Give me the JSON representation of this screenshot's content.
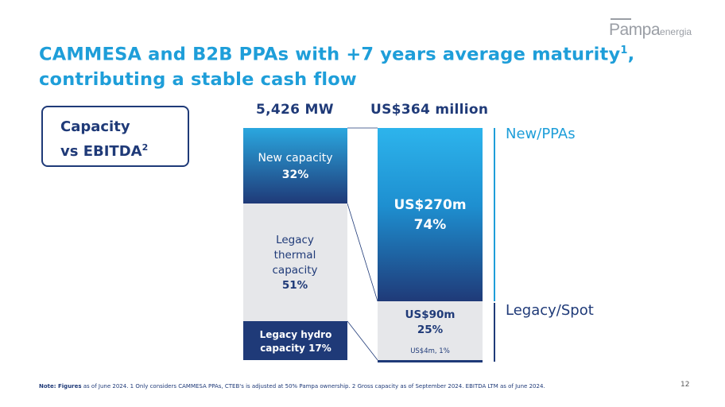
{
  "slide": {
    "title_line1": "CAMMESA and B2B PPAs with +7 years average maturity",
    "title_sup": "1",
    "title_line1_end": ",",
    "title_line2": "contributing a stable cash flow",
    "logo_main": "Pampa",
    "logo_small": "energia",
    "box_line1": "Capacity",
    "box_line2": "vs EBITDA",
    "box_sup": "2",
    "page_number": "12",
    "note_label": "Note: Figures",
    "note_text": " as of June 2024. 1 Only considers CAMMESA PPAs, CTEB's is adjusted at 50% Pampa ownership. 2 Gross capacity as of September 2024. EBITDA LTM as of June 2024."
  },
  "chart_data": {
    "type": "bar",
    "stacked": true,
    "charts": [
      {
        "header": "5,426 MW",
        "segments": [
          {
            "label": "New capacity",
            "value_label": "32%",
            "value": 32,
            "color": "#1e9ed9"
          },
          {
            "label": "Legacy thermal capacity",
            "value_label": "51%",
            "value": 51,
            "color": "#e6e7ea"
          },
          {
            "label": "Legacy hydro capacity",
            "value_label": "17%",
            "value": 17,
            "color": "#1f3a78"
          }
        ]
      },
      {
        "header": "US$364 million",
        "segments": [
          {
            "label": "US$270m",
            "value_label": "74%",
            "value": 74,
            "color": "#1e9ed9"
          },
          {
            "label": "US$90m",
            "value_label": "25%",
            "value": 25,
            "color": "#e6e7ea"
          },
          {
            "label": "US$4m, 1%",
            "value": 1,
            "color": "#1f3a78"
          }
        ]
      }
    ],
    "groups": [
      {
        "name": "New/PPAs",
        "color": "#1e9ed9"
      },
      {
        "name": "Legacy/Spot",
        "color": "#1f3a78"
      }
    ]
  }
}
